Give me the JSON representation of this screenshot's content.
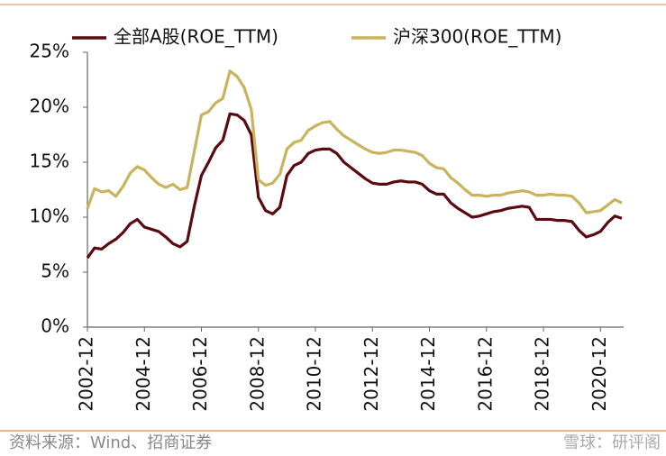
{
  "chart_data": {
    "type": "line",
    "categories": [
      "2002-12",
      null,
      null,
      null,
      null,
      null,
      null,
      null,
      "2004-12",
      null,
      null,
      null,
      null,
      null,
      null,
      null,
      "2006-12",
      null,
      null,
      null,
      null,
      null,
      null,
      null,
      "2008-12",
      null,
      null,
      null,
      null,
      null,
      null,
      null,
      "2010-12",
      null,
      null,
      null,
      null,
      null,
      null,
      null,
      "2012-12",
      null,
      null,
      null,
      null,
      null,
      null,
      null,
      "2014-12",
      null,
      null,
      null,
      null,
      null,
      null,
      null,
      "2016-12",
      null,
      null,
      null,
      null,
      null,
      null,
      null,
      "2018-12",
      null,
      null,
      null,
      null,
      null,
      null,
      null,
      "2020-12",
      null,
      null,
      null
    ],
    "series": [
      {
        "name": "全部A股(ROE_TTM)",
        "color": "#5a0b10",
        "values": [
          6.3,
          7.2,
          7.1,
          7.6,
          8.0,
          8.6,
          9.4,
          9.8,
          9.1,
          8.9,
          8.7,
          8.2,
          7.6,
          7.3,
          7.8,
          11.0,
          13.8,
          15.0,
          16.3,
          17.0,
          19.4,
          19.3,
          18.8,
          17.5,
          11.8,
          10.6,
          10.3,
          10.9,
          13.8,
          14.7,
          15.0,
          15.8,
          16.1,
          16.2,
          16.2,
          15.8,
          15.0,
          14.5,
          14.0,
          13.5,
          13.1,
          13.0,
          13.0,
          13.2,
          13.3,
          13.2,
          13.2,
          13.0,
          12.4,
          12.1,
          12.1,
          11.3,
          10.8,
          10.4,
          10.0,
          10.1,
          10.3,
          10.5,
          10.6,
          10.8,
          10.9,
          11.0,
          10.9,
          9.8,
          9.8,
          9.8,
          9.7,
          9.7,
          9.6,
          8.8,
          8.2,
          8.4,
          8.7,
          9.5,
          10.1,
          9.9
        ]
      },
      {
        "name": "沪深300(ROE_TTM)",
        "color": "#c9b45e",
        "values": [
          10.8,
          12.6,
          12.3,
          12.4,
          11.9,
          12.8,
          14.0,
          14.6,
          14.3,
          13.6,
          13.0,
          12.7,
          13.0,
          12.5,
          12.7,
          16.0,
          19.3,
          19.6,
          20.4,
          20.8,
          23.3,
          22.8,
          21.8,
          19.8,
          13.4,
          12.9,
          13.1,
          13.9,
          16.2,
          16.8,
          17.0,
          17.9,
          18.3,
          18.6,
          18.7,
          18.0,
          17.4,
          17.0,
          16.6,
          16.2,
          15.9,
          15.8,
          15.9,
          16.1,
          16.1,
          16.0,
          15.9,
          15.6,
          14.9,
          14.5,
          14.4,
          13.6,
          13.1,
          12.5,
          12.0,
          12.0,
          11.9,
          12.0,
          12.0,
          12.2,
          12.3,
          12.4,
          12.3,
          12.0,
          12.0,
          12.1,
          12.0,
          12.0,
          11.9,
          11.3,
          10.4,
          10.5,
          10.6,
          11.1,
          11.6,
          11.3
        ]
      }
    ],
    "ylim": [
      0,
      25
    ],
    "yticks": [
      {
        "value": 0,
        "label": "0%"
      },
      {
        "value": 5,
        "label": "5%"
      },
      {
        "value": 10,
        "label": "10%"
      },
      {
        "value": 15,
        "label": "15%"
      },
      {
        "value": 20,
        "label": "20%"
      },
      {
        "value": 25,
        "label": "25%"
      }
    ],
    "legend": "top",
    "source": "资料来源：Wind、招商证券",
    "watermark": "雪球：研评阁"
  }
}
